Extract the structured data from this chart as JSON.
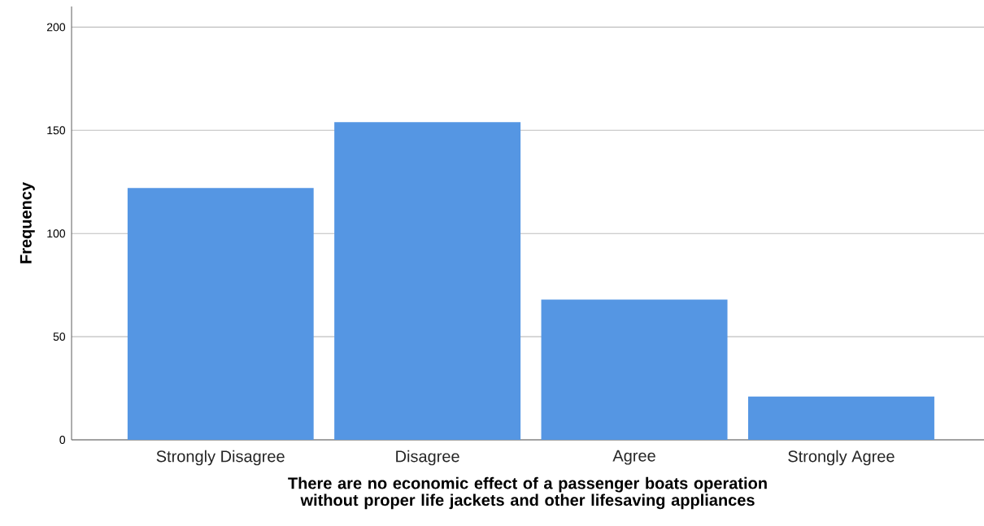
{
  "chart_data": {
    "type": "bar",
    "xlabel": "There are no economic effect of a passenger boats operation without proper life jackets and other lifesaving appliances",
    "ylabel": "Frequency",
    "categories": [
      "Strongly Disagree",
      "Disagree",
      "Agree",
      "Strongly Agree"
    ],
    "values": [
      122,
      154,
      68,
      21
    ],
    "color": "#5596e3",
    "ylim": [
      0,
      210
    ],
    "yticks": [
      0,
      50,
      100,
      150,
      200
    ],
    "grid": "y"
  }
}
